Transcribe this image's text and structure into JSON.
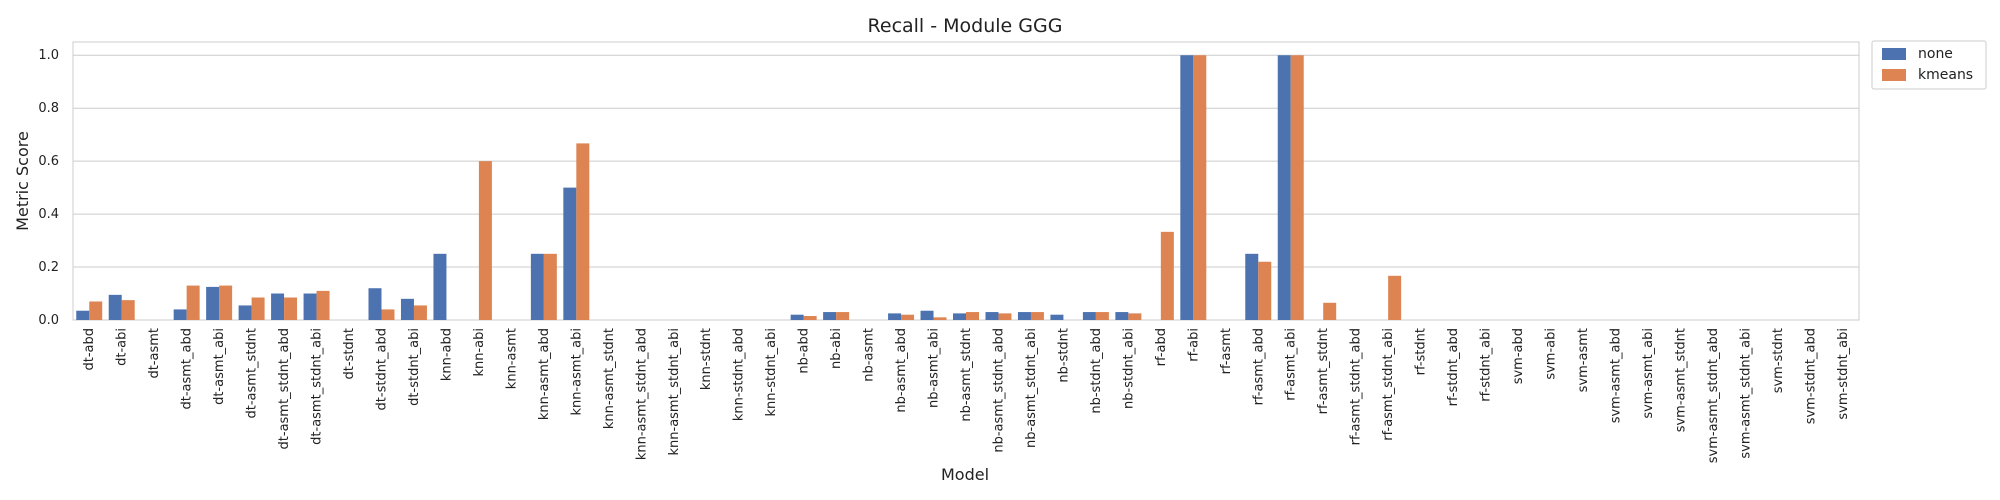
{
  "chart_data": {
    "type": "bar",
    "title": "Recall - Module GGG",
    "xlabel": "Model",
    "ylabel": "Metric Score",
    "ylim": [
      0,
      1.05
    ],
    "yticks": [
      0.0,
      0.2,
      0.4,
      0.6,
      0.8,
      1.0
    ],
    "ytick_labels": [
      "0.0",
      "0.2",
      "0.4",
      "0.6",
      "0.8",
      "1.0"
    ],
    "grid": true,
    "legend_position": "outside top-right",
    "categories": [
      "dt-abd",
      "dt-abi",
      "dt-asmt",
      "dt-asmt_abd",
      "dt-asmt_abi",
      "dt-asmt_stdnt",
      "dt-asmt_stdnt_abd",
      "dt-asmt_stdnt_abi",
      "dt-stdnt",
      "dt-stdnt_abd",
      "dt-stdnt_abi",
      "knn-abd",
      "knn-abi",
      "knn-asmt",
      "knn-asmt_abd",
      "knn-asmt_abi",
      "knn-asmt_stdnt",
      "knn-asmt_stdnt_abd",
      "knn-asmt_stdnt_abi",
      "knn-stdnt",
      "knn-stdnt_abd",
      "knn-stdnt_abi",
      "nb-abd",
      "nb-abi",
      "nb-asmt",
      "nb-asmt_abd",
      "nb-asmt_abi",
      "nb-asmt_stdnt",
      "nb-asmt_stdnt_abd",
      "nb-asmt_stdnt_abi",
      "nb-stdnt",
      "nb-stdnt_abd",
      "nb-stdnt_abi",
      "rf-abd",
      "rf-abi",
      "rf-asmt",
      "rf-asmt_abd",
      "rf-asmt_abi",
      "rf-asmt_stdnt",
      "rf-asmt_stdnt_abd",
      "rf-asmt_stdnt_abi",
      "rf-stdnt",
      "rf-stdnt_abd",
      "rf-stdnt_abi",
      "svm-abd",
      "svm-abi",
      "svm-asmt",
      "svm-asmt_abd",
      "svm-asmt_abi",
      "svm-asmt_stdnt",
      "svm-asmt_stdnt_abd",
      "svm-asmt_stdnt_abi",
      "svm-stdnt",
      "svm-stdnt_abd",
      "svm-stdnt_abi"
    ],
    "series": [
      {
        "name": "none",
        "color": "#4c72b0",
        "values": [
          0.035,
          0.095,
          0,
          0.04,
          0.125,
          0.055,
          0.1,
          0.1,
          0,
          0.12,
          0.08,
          0.25,
          0,
          0,
          0.25,
          0.5,
          0,
          0,
          0,
          0,
          0,
          0,
          0.02,
          0.03,
          0,
          0.025,
          0.035,
          0.025,
          0.03,
          0.03,
          0.02,
          0.03,
          0.03,
          0,
          1.0,
          0,
          0.25,
          1.0,
          0,
          0,
          0,
          0,
          0,
          0,
          0,
          0,
          0,
          0,
          0,
          0,
          0,
          0,
          0,
          0,
          0
        ]
      },
      {
        "name": "kmeans",
        "color": "#dd8452",
        "values": [
          0.07,
          0.075,
          0,
          0.13,
          0.13,
          0.085,
          0.085,
          0.11,
          0,
          0.04,
          0.055,
          0,
          0.6,
          0,
          0.25,
          0.667,
          0,
          0,
          0,
          0,
          0,
          0,
          0.015,
          0.03,
          0,
          0.02,
          0.01,
          0.03,
          0.025,
          0.03,
          0,
          0.03,
          0.025,
          0.333,
          1.0,
          0,
          0.22,
          1.0,
          0.065,
          0,
          0.167,
          0,
          0,
          0,
          0,
          0,
          0,
          0,
          0,
          0,
          0,
          0,
          0,
          0,
          0
        ]
      }
    ]
  }
}
